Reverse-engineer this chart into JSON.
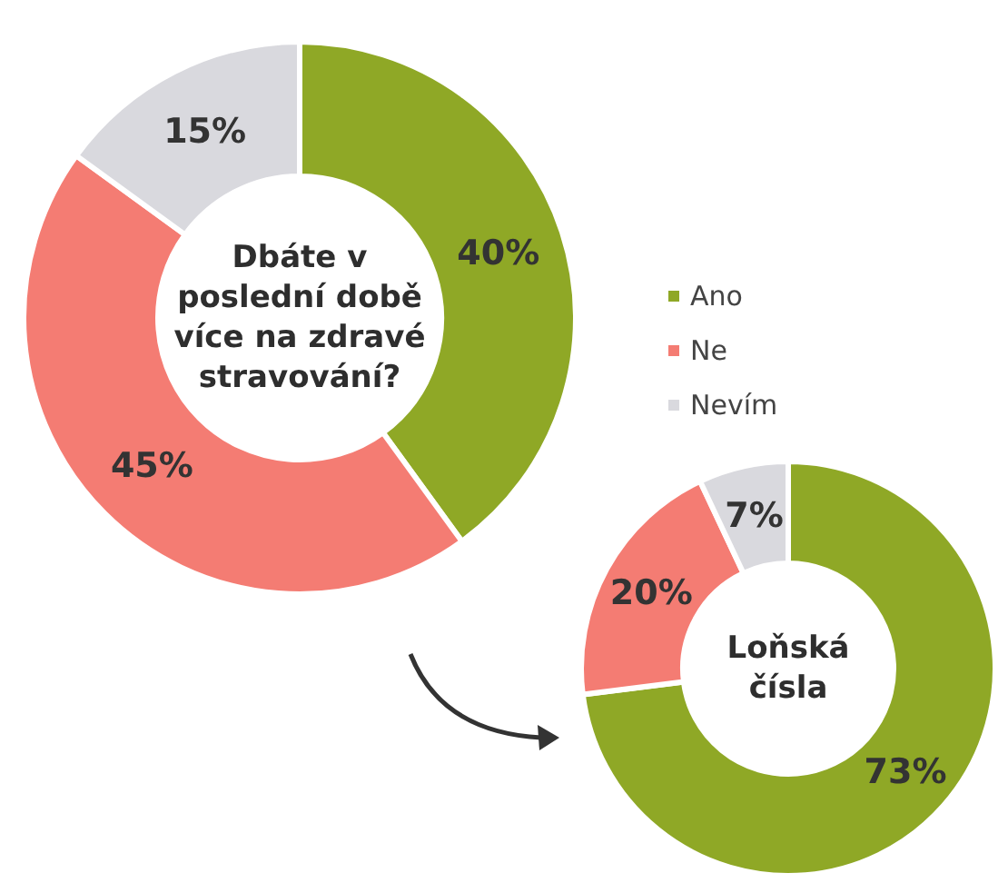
{
  "chart_data": [
    {
      "type": "donut",
      "title": "Dbáte v poslední době více na zdravé stravování?",
      "categories": [
        "Ano",
        "Ne",
        "Nevím"
      ],
      "values": [
        40,
        45,
        15
      ],
      "value_labels": [
        "40%",
        "45%",
        "15%"
      ],
      "colors": [
        "#8fa826",
        "#f47c73",
        "#d9d9de"
      ],
      "legend": "right"
    },
    {
      "type": "donut",
      "title": "Loňská čísla",
      "categories": [
        null,
        null,
        null
      ],
      "values": [
        73,
        20,
        7
      ],
      "value_labels": [
        "73%",
        "20%",
        "7%"
      ],
      "colors": [
        "#8fa826",
        "#f47c73",
        "#d9d9de"
      ]
    }
  ]
}
